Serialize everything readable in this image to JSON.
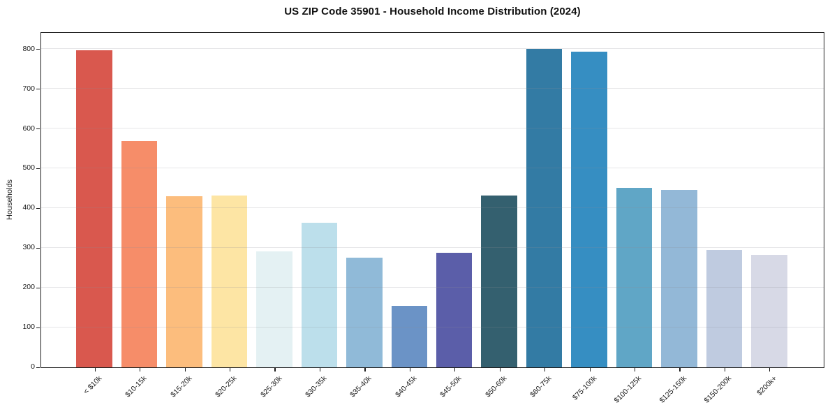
{
  "chart_data": {
    "type": "bar",
    "title": "US ZIP Code 35901 - Household Income Distribution (2024)",
    "xlabel": "",
    "ylabel": "Households",
    "categories": [
      "< $10k",
      "$10-15k",
      "$15-20k",
      "$20-25k",
      "$25-30k",
      "$30-35k",
      "$35-40k",
      "$40-45k",
      "$45-50k",
      "$50-60k",
      "$60-75k",
      "$75-100k",
      "$100-125k",
      "$125-150k",
      "$150-200k",
      "$200k+"
    ],
    "values": [
      797,
      569,
      430,
      432,
      292,
      363,
      276,
      155,
      289,
      433,
      801,
      795,
      452,
      447,
      295,
      283
    ],
    "bar_colors": [
      "#d9584e",
      "#f68d69",
      "#fcbd7d",
      "#fde5a4",
      "#e4f1f3",
      "#bcdfeb",
      "#90bad8",
      "#6b93c6",
      "#5b5ea9",
      "#34606f",
      "#337ba4",
      "#368ec2",
      "#60a6c6",
      "#93b8d7",
      "#bfcbe0",
      "#d7d9e6"
    ],
    "ylim": [
      0,
      840
    ],
    "yticks": [
      0,
      100,
      200,
      300,
      400,
      500,
      600,
      700,
      800
    ],
    "grid": "horizontal",
    "grid_color": "#e6e6e9",
    "axis_color": "#1c1c1c",
    "background": "#ffffff",
    "legend": "none"
  }
}
